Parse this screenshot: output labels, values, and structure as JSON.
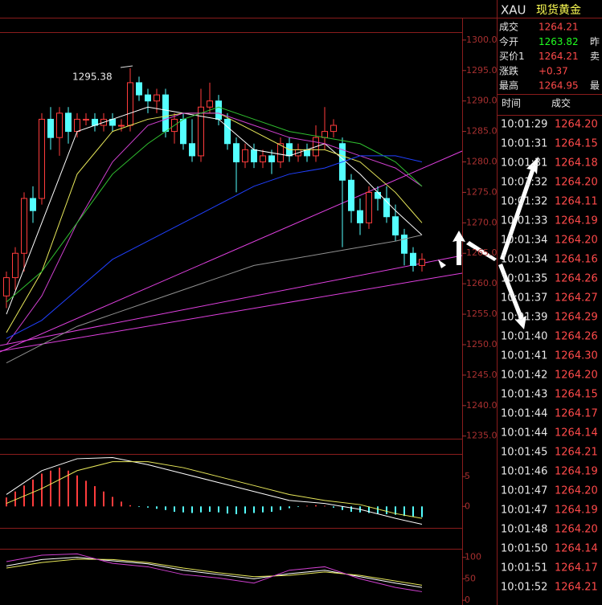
{
  "chart_data": [
    {
      "type": "candlestick",
      "annotation": "1295.38",
      "open": [
        1258,
        1261,
        1265,
        1274,
        1274,
        1287,
        1284,
        1288,
        1285,
        1287,
        1287,
        1286,
        1287,
        1286,
        1286,
        1293,
        1291,
        1290,
        1291,
        1285,
        1287,
        1283,
        1281,
        1289,
        1290,
        1287,
        1283,
        1280,
        1282,
        1280,
        1281,
        1280,
        1283,
        1281,
        1282,
        1281,
        1284,
        1285,
        1283,
        1277,
        1272,
        1270,
        1275,
        1274,
        1271,
        1268,
        1265,
        1263
      ],
      "high": [
        1262,
        1266,
        1275,
        1276,
        1288,
        1289,
        1289,
        1289,
        1288,
        1288,
        1288,
        1288,
        1288,
        1287,
        1295.38,
        1294,
        1292,
        1292,
        1292,
        1288,
        1288,
        1287,
        1292,
        1293,
        1291,
        1288,
        1284,
        1283,
        1283,
        1282,
        1282,
        1284,
        1284,
        1283,
        1283,
        1286,
        1289,
        1287,
        1284,
        1278,
        1274,
        1276,
        1276,
        1276,
        1273,
        1269,
        1266,
        1265
      ],
      "low": [
        1256,
        1259,
        1262,
        1270,
        1273,
        1282,
        1281,
        1283,
        1284,
        1286,
        1285,
        1285,
        1285,
        1285,
        1285,
        1290,
        1288,
        1288,
        1284,
        1283,
        1282,
        1280,
        1280,
        1288,
        1286,
        1282,
        1275,
        1279,
        1279,
        1279,
        1278,
        1279,
        1280,
        1280,
        1280,
        1280,
        1282,
        1284,
        1266,
        1270,
        1268,
        1269,
        1272,
        1270,
        1267,
        1263,
        1262,
        1262
      ],
      "close": [
        1261,
        1265,
        1274,
        1272,
        1287,
        1284,
        1288,
        1285,
        1287,
        1287,
        1286,
        1287,
        1286,
        1286,
        1293,
        1291,
        1290,
        1291,
        1285,
        1287,
        1283,
        1281,
        1289,
        1290,
        1287,
        1283,
        1280,
        1282,
        1280,
        1281,
        1280,
        1283,
        1281,
        1282,
        1281,
        1284,
        1285,
        1286,
        1277,
        1272,
        1270,
        1275,
        1274,
        1271,
        1268,
        1265,
        1263,
        1264
      ],
      "colors": {
        "up": "#ff3c3c",
        "down": "#54ffff"
      },
      "series": [
        {
          "color": "#ffffff",
          "x": [
            0,
            4,
            8,
            12,
            16,
            20,
            24,
            28,
            32,
            36,
            40,
            44,
            47
          ],
          "values": [
            1255,
            1270,
            1285,
            1287,
            1289,
            1288,
            1287,
            1282,
            1281,
            1283,
            1278,
            1272,
            1268
          ]
        },
        {
          "color": "#e8e85a",
          "x": [
            0,
            4,
            8,
            12,
            16,
            20,
            24,
            28,
            32,
            36,
            40,
            44,
            47
          ],
          "values": [
            1252,
            1262,
            1278,
            1285,
            1287,
            1288,
            1288,
            1285,
            1282,
            1282,
            1280,
            1275,
            1270
          ]
        },
        {
          "color": "#d040d0",
          "x": [
            0,
            4,
            8,
            12,
            16,
            20,
            24,
            28,
            32,
            36,
            40,
            44,
            47
          ],
          "values": [
            1250,
            1258,
            1270,
            1280,
            1286,
            1288,
            1288,
            1286,
            1284,
            1283,
            1281,
            1279,
            1276
          ]
        },
        {
          "color": "#30c030",
          "x": [
            0,
            4,
            8,
            12,
            16,
            20,
            24,
            28,
            32,
            36,
            40,
            44,
            47
          ],
          "values": [
            1257,
            1262,
            1270,
            1278,
            1283,
            1287,
            1289,
            1287,
            1285,
            1284,
            1283,
            1280,
            1276
          ]
        },
        {
          "color": "#2040ff",
          "x": [
            0,
            4,
            8,
            12,
            16,
            20,
            24,
            28,
            32,
            36,
            40,
            44,
            47
          ],
          "values": [
            1251,
            1254,
            1259,
            1264,
            1267,
            1270,
            1273,
            1276,
            1278,
            1279,
            1281,
            1281,
            1280
          ]
        },
        {
          "color": "#909090",
          "x": [
            0,
            4,
            8,
            12,
            16,
            20,
            24,
            28,
            32,
            36,
            40,
            44,
            47
          ],
          "values": [
            1247,
            1250,
            1253,
            1255,
            1257,
            1259,
            1261,
            1263,
            1264,
            1265,
            1266,
            1267,
            1268
          ]
        }
      ],
      "ylim": [
        1234.7,
        1301.3
      ],
      "yticks": [
        {
          "value": 1300,
          "label": "1300.0"
        },
        {
          "value": 1295,
          "label": "1295.0"
        },
        {
          "value": 1290,
          "label": "1290.0"
        },
        {
          "value": 1285,
          "label": "1285.0"
        },
        {
          "value": 1280,
          "label": "1280.0"
        },
        {
          "value": 1275,
          "label": "1275.0"
        },
        {
          "value": 1270,
          "label": "1270.0"
        },
        {
          "value": 1265,
          "label": "1265.0"
        },
        {
          "value": 1260,
          "label": "1260.0"
        },
        {
          "value": 1255,
          "label": "1255.0"
        },
        {
          "value": 1250,
          "label": "1250.0"
        },
        {
          "value": 1245,
          "label": "1245.0"
        },
        {
          "value": 1240,
          "label": "1240.0"
        },
        {
          "value": 1235,
          "label": "1235.0"
        }
      ]
    },
    {
      "type": "bar",
      "values": [
        1.5,
        2.5,
        3.5,
        4.5,
        5.5,
        6,
        6.5,
        6,
        5.2,
        4.3,
        3.4,
        2.5,
        1.6,
        0.8,
        0.2,
        -0.1,
        -0.2,
        -0.4,
        -0.6,
        -0.9,
        -1,
        -1.1,
        -1,
        -0.9,
        -1,
        -1.2,
        -1.3,
        -1.2,
        -1.1,
        -1,
        -0.9,
        -0.6,
        -0.3,
        -0.1,
        0.1,
        0.2,
        0.1,
        -0.2,
        -0.6,
        -0.9,
        -1,
        -1.1,
        -1.2,
        -1.3,
        -1.4,
        -1.6,
        -1.7,
        -1.8
      ],
      "colors": {
        "up": "#ff3c3c",
        "down": "#54ffff"
      },
      "series": [
        {
          "color": "#ffffff",
          "x": [
            0,
            4,
            8,
            12,
            16,
            20,
            24,
            28,
            32,
            36,
            40,
            44,
            47
          ],
          "values": [
            2,
            6,
            8,
            8.2,
            7,
            5.5,
            4,
            2.5,
            1,
            0.5,
            -0.5,
            -2,
            -3
          ]
        },
        {
          "color": "#e8e85a",
          "x": [
            0,
            4,
            8,
            12,
            16,
            20,
            24,
            28,
            32,
            36,
            40,
            44,
            47
          ],
          "values": [
            0.5,
            3,
            6,
            7.5,
            7.5,
            6.5,
            5,
            3.5,
            2,
            1,
            0.3,
            -1.2,
            -2
          ]
        }
      ],
      "ylim": [
        -3.6,
        8.8
      ],
      "yticks": [
        5,
        0
      ]
    },
    {
      "type": "line",
      "series": [
        {
          "color": "#ffffff",
          "x": [
            0,
            4,
            8,
            12,
            16,
            20,
            24,
            28,
            32,
            36,
            40,
            44,
            47
          ],
          "values": [
            80,
            95,
            100,
            92,
            85,
            70,
            60,
            50,
            62,
            70,
            55,
            40,
            30
          ]
        },
        {
          "color": "#e8e85a",
          "x": [
            0,
            4,
            8,
            12,
            16,
            20,
            24,
            28,
            32,
            36,
            40,
            44,
            47
          ],
          "values": [
            75,
            88,
            96,
            95,
            88,
            75,
            64,
            55,
            58,
            66,
            58,
            45,
            35
          ]
        },
        {
          "color": "#d040d0",
          "x": [
            0,
            4,
            8,
            12,
            16,
            20,
            24,
            28,
            32,
            36,
            40,
            44,
            47
          ],
          "values": [
            90,
            105,
            108,
            86,
            78,
            60,
            52,
            40,
            70,
            78,
            50,
            30,
            20
          ]
        }
      ],
      "ylim": [
        -11,
        120
      ],
      "yticks": [
        100,
        50,
        0
      ]
    }
  ],
  "quote": {
    "symbol": "XAU",
    "name": "现货黄金",
    "rows": [
      [
        "成交",
        "1264.21",
        ""
      ],
      [
        "今开",
        "1263.82",
        "昨"
      ],
      [
        "买价1",
        "1264.21",
        "卖"
      ],
      [
        "涨跌",
        "+0.37",
        ""
      ],
      [
        "最高",
        "1264.95",
        "最"
      ]
    ],
    "colors": [
      "#ff4a4a",
      "#20ff20",
      "#ff4a4a",
      "#ff4a4a",
      "#ff4a4a"
    ]
  },
  "ticks": {
    "header": [
      "时间",
      "成交"
    ],
    "rows": [
      [
        "10:01:29",
        "1264.20"
      ],
      [
        "10:01:31",
        "1264.15"
      ],
      [
        "10:01:31",
        "1264.18"
      ],
      [
        "10:01:32",
        "1264.20"
      ],
      [
        "10:01:32",
        "1264.11"
      ],
      [
        "10:01:33",
        "1264.19"
      ],
      [
        "10:01:34",
        "1264.20"
      ],
      [
        "10:01:34",
        "1264.16"
      ],
      [
        "10:01:35",
        "1264.26"
      ],
      [
        "10:01:37",
        "1264.27"
      ],
      [
        "10:01:39",
        "1264.29"
      ],
      [
        "10:01:40",
        "1264.26"
      ],
      [
        "10:01:41",
        "1264.30"
      ],
      [
        "10:01:42",
        "1264.20"
      ],
      [
        "10:01:43",
        "1264.15"
      ],
      [
        "10:01:44",
        "1264.17"
      ],
      [
        "10:01:44",
        "1264.14"
      ],
      [
        "10:01:45",
        "1264.21"
      ],
      [
        "10:01:46",
        "1264.19"
      ],
      [
        "10:01:47",
        "1264.20"
      ],
      [
        "10:01:47",
        "1264.19"
      ],
      [
        "10:01:48",
        "1264.20"
      ],
      [
        "10:01:50",
        "1264.14"
      ],
      [
        "10:01:51",
        "1264.17"
      ],
      [
        "10:01:52",
        "1264.21"
      ]
    ]
  }
}
